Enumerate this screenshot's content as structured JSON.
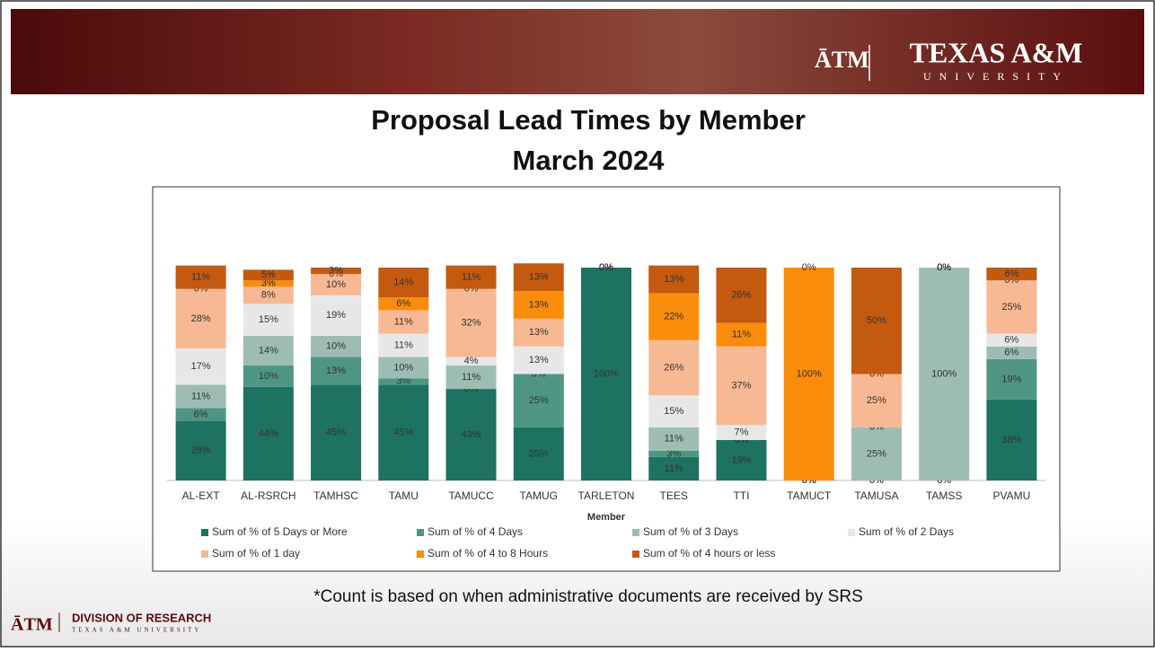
{
  "header": {
    "brand": "TEXAS A&M",
    "brand_sub": "UNIVERSITY"
  },
  "footer": {
    "note": "*Count is based on when administrative documents are received by SRS",
    "division": "DIVISION OF RESEARCH",
    "division_sub": "TEXAS A&M UNIVERSITY"
  },
  "chart_data": {
    "type": "stacked_bar",
    "title": "Proposal Lead Times by Member",
    "subtitle": "March 2024",
    "x_label": "Member",
    "categories": [
      "AL-EXT",
      "AL-RSRCH",
      "TAMHSC",
      "TAMU",
      "TAMUCC",
      "TAMUG",
      "TARLETON",
      "TEES",
      "TTI",
      "TAMUCT",
      "TAMUSA",
      "TAMSS",
      "PVAMU"
    ],
    "ylim": [
      0,
      100
    ],
    "series": [
      {
        "name": "Sum of % of 5 Days or More",
        "color": "#1e7262",
        "values": [
          28,
          44,
          45,
          45,
          43,
          25,
          100,
          11,
          19,
          0,
          0,
          0,
          38
        ],
        "value_labels": [
          "28%",
          "44%",
          "45%",
          "45%",
          "43%",
          "25%",
          "100%",
          "11%",
          "19%",
          "0%",
          "0%",
          "0%",
          "38%"
        ]
      },
      {
        "name": "Sum of % of 4 Days",
        "color": "#4f9583",
        "values": [
          6,
          10,
          13,
          3,
          0,
          25,
          0,
          3,
          0,
          0,
          0,
          0,
          19
        ],
        "value_labels": [
          "6%",
          "10%",
          "13%",
          "3%",
          "0%",
          "25%",
          "0%",
          "3%",
          "0%",
          "0%",
          "0%",
          "0%",
          "19%"
        ]
      },
      {
        "name": "Sum of % of 3 Days",
        "color": "#9dbdb4",
        "values": [
          11,
          14,
          10,
          10,
          11,
          0,
          0,
          11,
          0,
          0,
          25,
          100,
          6
        ],
        "value_labels": [
          "11%",
          "14%",
          "10%",
          "10%",
          "11%",
          "0%",
          "0%",
          "11%",
          "0%",
          "0%",
          "25%",
          "100%",
          "6%"
        ]
      },
      {
        "name": "Sum of % of 2 Days",
        "color": "#e7e7e7",
        "values": [
          17,
          15,
          19,
          11,
          4,
          13,
          0,
          15,
          7,
          0,
          0,
          0,
          6
        ],
        "value_labels": [
          "17%",
          "15%",
          "19%",
          "11%",
          "4%",
          "13%",
          "0%",
          "15%",
          "7%",
          "0%",
          "0%",
          "0%",
          "6%"
        ]
      },
      {
        "name": "Sum of % of 1 day",
        "color": "#f7b994",
        "values": [
          28,
          8,
          10,
          11,
          32,
          13,
          0,
          26,
          37,
          0,
          25,
          0,
          25
        ],
        "value_labels": [
          "28%",
          "8%",
          "10%",
          "11%",
          "32%",
          "13%",
          "0%",
          "26%",
          "37%",
          "0%",
          "25%",
          "0%",
          "25%"
        ]
      },
      {
        "name": "Sum of % of 4 to 8 Hours",
        "color": "#fa8c0b",
        "values": [
          0,
          3,
          0,
          6,
          0,
          13,
          0,
          22,
          11,
          100,
          0,
          0,
          0
        ],
        "value_labels": [
          "0%",
          "3%",
          "0%",
          "6%",
          "0%",
          "13%",
          "0%",
          "22%",
          "11%",
          "100%",
          "0%",
          "0%",
          "0%"
        ]
      },
      {
        "name": "Sum of % of 4 hours or less",
        "color": "#c45910",
        "values": [
          11,
          5,
          3,
          14,
          11,
          13,
          0,
          13,
          26,
          0,
          50,
          0,
          6
        ],
        "value_labels": [
          "11%",
          "5%",
          "3%",
          "14%",
          "11%",
          "13%",
          "0%",
          "13%",
          "26%",
          "0%",
          "50%",
          "0%",
          "6%"
        ]
      }
    ]
  }
}
